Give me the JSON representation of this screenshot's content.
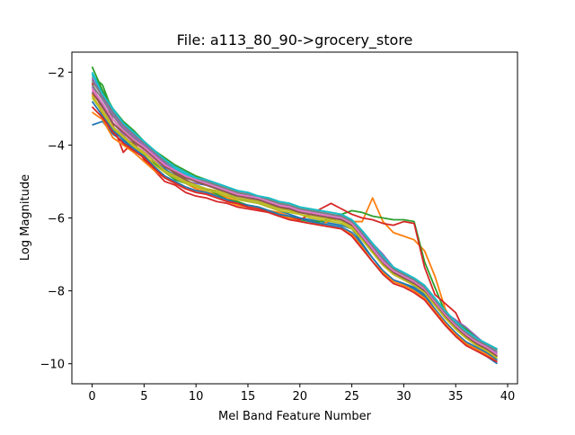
{
  "chart_data": {
    "type": "line",
    "title": "File: a113_80_90->grocery_store",
    "xlabel": "Mel Band Feature Number",
    "ylabel": "Log Magnitude",
    "xlim": [
      -1.95,
      40.95
    ],
    "ylim": [
      -10.55,
      -1.45
    ],
    "xticks": [
      0,
      5,
      10,
      15,
      20,
      25,
      30,
      35,
      40
    ],
    "yticks": [
      -10,
      -8,
      -6,
      -4,
      -2
    ],
    "grid": false,
    "legend": "none",
    "colors": [
      "#1f77b4",
      "#ff7f0e",
      "#2ca02c",
      "#d62728",
      "#9467bd",
      "#8c564b",
      "#e377c2",
      "#7f7f7f",
      "#bcbd22",
      "#17becf"
    ],
    "x": [
      0,
      1,
      2,
      3,
      4,
      5,
      6,
      7,
      8,
      9,
      10,
      11,
      12,
      13,
      14,
      15,
      16,
      17,
      18,
      19,
      20,
      21,
      22,
      23,
      24,
      25,
      26,
      27,
      28,
      29,
      30,
      31,
      32,
      33,
      34,
      35,
      36,
      37,
      38,
      39
    ],
    "series": [
      {
        "values": [
          -3.45,
          -3.35,
          -3.7,
          -3.9,
          -4.1,
          -4.2,
          -4.4,
          -4.65,
          -4.85,
          -5.0,
          -5.05,
          -5.1,
          -5.2,
          -5.3,
          -5.45,
          -5.55,
          -5.6,
          -5.7,
          -5.8,
          -5.9,
          -6.0,
          -6.05,
          -6.1,
          -6.15,
          -6.2,
          -6.3,
          -6.7,
          -7.1,
          -7.45,
          -7.7,
          -7.8,
          -7.9,
          -8.1,
          -8.5,
          -8.9,
          -9.2,
          -9.45,
          -9.6,
          -9.8,
          -10.0
        ]
      },
      {
        "values": [
          -2.6,
          -3.15,
          -3.6,
          -3.8,
          -3.95,
          -4.3,
          -4.5,
          -4.7,
          -4.9,
          -5.05,
          -5.2,
          -5.3,
          -5.35,
          -5.45,
          -5.55,
          -5.7,
          -5.75,
          -5.8,
          -5.85,
          -5.95,
          -6.05,
          -6.1,
          -6.2,
          -6.05,
          -6.0,
          -6.1,
          -6.1,
          -5.45,
          -6.1,
          -6.4,
          -6.5,
          -6.6,
          -6.9,
          -7.6,
          -8.5,
          -9.0,
          -9.2,
          -9.3,
          -9.6,
          -9.7
        ]
      },
      {
        "values": [
          -2.1,
          -2.35,
          -3.1,
          -3.6,
          -3.85,
          -4.0,
          -4.5,
          -4.75,
          -4.95,
          -5.05,
          -5.15,
          -5.2,
          -5.35,
          -5.5,
          -5.55,
          -5.65,
          -5.7,
          -5.8,
          -5.9,
          -6.0,
          -6.05,
          -6.1,
          -6.1,
          -6.0,
          -5.9,
          -5.8,
          -5.85,
          -5.95,
          -6.0,
          -6.05,
          -6.05,
          -6.1,
          -7.2,
          -7.9,
          -8.6,
          -8.9,
          -9.1,
          -9.3,
          -9.5,
          -9.6
        ]
      },
      {
        "values": [
          -2.3,
          -3.1,
          -3.45,
          -4.2,
          -3.9,
          -4.4,
          -4.7,
          -5.0,
          -5.1,
          -5.3,
          -5.4,
          -5.45,
          -5.55,
          -5.6,
          -5.7,
          -5.75,
          -5.8,
          -5.85,
          -5.95,
          -6.0,
          -6.05,
          -5.9,
          -5.75,
          -5.6,
          -5.75,
          -5.9,
          -6.0,
          -6.05,
          -6.15,
          -6.2,
          -6.1,
          -6.15,
          -7.35,
          -8.1,
          -8.35,
          -8.6,
          -9.2,
          -9.35,
          -9.45,
          -9.6
        ]
      },
      {
        "values": [
          -2.4,
          -2.9,
          -3.4,
          -3.7,
          -4.0,
          -4.2,
          -4.45,
          -4.7,
          -4.9,
          -5.0,
          -5.05,
          -5.05,
          -5.15,
          -5.25,
          -5.3,
          -5.4,
          -5.5,
          -5.6,
          -5.65,
          -5.75,
          -5.8,
          -5.85,
          -5.9,
          -5.95,
          -6.0,
          -6.15,
          -6.4,
          -6.7,
          -7.0,
          -7.35,
          -7.6,
          -7.8,
          -8.0,
          -8.3,
          -8.6,
          -8.8,
          -9.0,
          -9.25,
          -9.5,
          -9.8
        ]
      },
      {
        "values": [
          -2.2,
          -2.6,
          -3.3,
          -3.6,
          -3.95,
          -4.1,
          -4.4,
          -4.55,
          -4.8,
          -4.95,
          -5.1,
          -5.2,
          -5.3,
          -5.4,
          -5.45,
          -5.5,
          -5.55,
          -5.65,
          -5.7,
          -5.8,
          -5.85,
          -5.9,
          -5.95,
          -6.0,
          -6.05,
          -6.2,
          -6.5,
          -6.8,
          -7.1,
          -7.4,
          -7.55,
          -7.7,
          -7.9,
          -8.3,
          -8.65,
          -9.0,
          -9.2,
          -9.45,
          -9.65,
          -9.75
        ]
      },
      {
        "values": [
          -2.5,
          -3.0,
          -3.5,
          -3.75,
          -3.9,
          -4.15,
          -4.4,
          -4.6,
          -4.75,
          -4.85,
          -5.0,
          -5.1,
          -5.2,
          -5.3,
          -5.35,
          -5.45,
          -5.5,
          -5.6,
          -5.65,
          -5.75,
          -5.8,
          -5.85,
          -5.9,
          -5.95,
          -6.05,
          -6.25,
          -6.6,
          -6.95,
          -7.3,
          -7.55,
          -7.7,
          -7.85,
          -8.05,
          -8.4,
          -8.75,
          -9.05,
          -9.3,
          -9.5,
          -9.7,
          -9.85
        ]
      },
      {
        "values": [
          -2.35,
          -2.75,
          -3.2,
          -3.55,
          -3.8,
          -4.05,
          -4.3,
          -4.5,
          -4.7,
          -4.8,
          -4.9,
          -5.0,
          -5.1,
          -5.2,
          -5.3,
          -5.4,
          -5.45,
          -5.5,
          -5.6,
          -5.7,
          -5.75,
          -5.8,
          -5.85,
          -5.9,
          -6.0,
          -6.15,
          -6.45,
          -6.8,
          -7.15,
          -7.45,
          -7.6,
          -7.75,
          -7.95,
          -8.3,
          -8.65,
          -8.95,
          -9.15,
          -9.4,
          -9.55,
          -9.7
        ]
      },
      {
        "values": [
          -2.7,
          -3.1,
          -3.55,
          -3.8,
          -4.05,
          -4.25,
          -4.55,
          -4.75,
          -4.9,
          -5.05,
          -5.15,
          -5.25,
          -5.3,
          -5.4,
          -5.5,
          -5.55,
          -5.6,
          -5.7,
          -5.8,
          -5.85,
          -5.9,
          -6.0,
          -6.05,
          -6.1,
          -6.15,
          -6.3,
          -6.6,
          -6.95,
          -7.25,
          -7.5,
          -7.65,
          -7.8,
          -8.0,
          -8.35,
          -8.7,
          -9.0,
          -9.25,
          -9.45,
          -9.65,
          -9.8
        ]
      },
      {
        "values": [
          -2.0,
          -2.55,
          -3.05,
          -3.4,
          -3.7,
          -3.95,
          -4.2,
          -4.45,
          -4.65,
          -4.8,
          -4.95,
          -5.0,
          -5.1,
          -5.2,
          -5.3,
          -5.35,
          -5.45,
          -5.5,
          -5.6,
          -5.65,
          -5.75,
          -5.8,
          -5.85,
          -5.9,
          -5.95,
          -6.1,
          -6.4,
          -6.75,
          -7.1,
          -7.4,
          -7.55,
          -7.7,
          -7.9,
          -8.25,
          -8.6,
          -8.9,
          -9.1,
          -9.35,
          -9.5,
          -9.65
        ]
      },
      {
        "values": [
          -2.8,
          -3.2,
          -3.6,
          -3.85,
          -4.1,
          -4.3,
          -4.6,
          -4.85,
          -5.0,
          -5.15,
          -5.25,
          -5.3,
          -5.4,
          -5.5,
          -5.6,
          -5.65,
          -5.7,
          -5.8,
          -5.9,
          -5.95,
          -6.0,
          -6.1,
          -6.15,
          -6.2,
          -6.25,
          -6.4,
          -6.75,
          -7.1,
          -7.45,
          -7.7,
          -7.8,
          -7.95,
          -8.15,
          -8.5,
          -8.85,
          -9.15,
          -9.4,
          -9.55,
          -9.7,
          -9.9
        ]
      },
      {
        "values": [
          -3.1,
          -3.3,
          -3.8,
          -4.0,
          -4.2,
          -4.45,
          -4.7,
          -4.9,
          -5.05,
          -5.2,
          -5.3,
          -5.35,
          -5.45,
          -5.55,
          -5.65,
          -5.7,
          -5.75,
          -5.85,
          -5.95,
          -6.0,
          -6.1,
          -6.15,
          -6.2,
          -6.25,
          -6.3,
          -6.45,
          -6.8,
          -7.2,
          -7.5,
          -7.75,
          -7.85,
          -8.0,
          -8.2,
          -8.55,
          -8.9,
          -9.2,
          -9.45,
          -9.6,
          -9.75,
          -9.95
        ]
      },
      {
        "values": [
          -1.85,
          -2.5,
          -3.0,
          -3.35,
          -3.6,
          -3.9,
          -4.15,
          -4.35,
          -4.55,
          -4.7,
          -4.85,
          -4.95,
          -5.05,
          -5.15,
          -5.25,
          -5.3,
          -5.4,
          -5.45,
          -5.55,
          -5.6,
          -5.7,
          -5.75,
          -5.8,
          -5.85,
          -5.9,
          -6.05,
          -6.35,
          -6.7,
          -7.05,
          -7.35,
          -7.5,
          -7.65,
          -7.85,
          -8.2,
          -8.55,
          -8.85,
          -9.05,
          -9.3,
          -9.45,
          -9.6
        ]
      },
      {
        "values": [
          -2.95,
          -3.25,
          -3.65,
          -3.95,
          -4.15,
          -4.35,
          -4.65,
          -4.9,
          -5.05,
          -5.2,
          -5.3,
          -5.35,
          -5.45,
          -5.55,
          -5.6,
          -5.7,
          -5.75,
          -5.85,
          -5.95,
          -6.05,
          -6.1,
          -6.15,
          -6.2,
          -6.25,
          -6.3,
          -6.5,
          -6.85,
          -7.2,
          -7.55,
          -7.8,
          -7.9,
          -8.05,
          -8.25,
          -8.6,
          -8.95,
          -9.25,
          -9.5,
          -9.65,
          -9.8,
          -9.95
        ]
      },
      {
        "values": [
          -2.15,
          -2.7,
          -3.15,
          -3.5,
          -3.75,
          -4.0,
          -4.25,
          -4.5,
          -4.7,
          -4.85,
          -5.0,
          -5.05,
          -5.15,
          -5.25,
          -5.35,
          -5.4,
          -5.5,
          -5.55,
          -5.65,
          -5.7,
          -5.8,
          -5.85,
          -5.9,
          -5.95,
          -6.0,
          -6.15,
          -6.45,
          -6.8,
          -7.15,
          -7.45,
          -7.6,
          -7.75,
          -7.95,
          -8.3,
          -8.65,
          -8.95,
          -9.2,
          -9.4,
          -9.55,
          -9.7
        ]
      },
      {
        "values": [
          -2.55,
          -2.95,
          -3.4,
          -3.65,
          -3.9,
          -4.1,
          -4.35,
          -4.6,
          -4.75,
          -4.9,
          -5.0,
          -5.1,
          -5.2,
          -5.3,
          -5.4,
          -5.45,
          -5.5,
          -5.6,
          -5.7,
          -5.75,
          -5.85,
          -5.9,
          -5.95,
          -6.0,
          -6.05,
          -6.2,
          -6.55,
          -6.9,
          -7.25,
          -7.5,
          -7.65,
          -7.8,
          -8.0,
          -8.35,
          -8.7,
          -9.0,
          -9.25,
          -9.45,
          -9.6,
          -9.8
        ]
      },
      {
        "values": [
          -2.45,
          -2.85,
          -3.3,
          -3.6,
          -3.85,
          -4.05,
          -4.3,
          -4.55,
          -4.7,
          -4.85,
          -4.95,
          -5.05,
          -5.15,
          -5.25,
          -5.35,
          -5.4,
          -5.45,
          -5.55,
          -5.65,
          -5.7,
          -5.8,
          -5.85,
          -5.9,
          -5.95,
          -6.0,
          -6.15,
          -6.5,
          -6.85,
          -7.2,
          -7.45,
          -7.6,
          -7.75,
          -7.95,
          -8.3,
          -8.65,
          -8.95,
          -9.2,
          -9.4,
          -9.55,
          -9.75
        ]
      },
      {
        "values": [
          -2.25,
          -2.65,
          -3.1,
          -3.45,
          -3.7,
          -3.95,
          -4.2,
          -4.45,
          -4.6,
          -4.75,
          -4.9,
          -5.0,
          -5.1,
          -5.2,
          -5.3,
          -5.35,
          -5.4,
          -5.5,
          -5.6,
          -5.65,
          -5.75,
          -5.8,
          -5.85,
          -5.9,
          -5.95,
          -6.1,
          -6.4,
          -6.75,
          -7.1,
          -7.4,
          -7.55,
          -7.7,
          -7.9,
          -8.25,
          -8.6,
          -8.9,
          -9.15,
          -9.35,
          -9.5,
          -9.65
        ]
      },
      {
        "values": [
          -2.65,
          -3.05,
          -3.5,
          -3.75,
          -4.0,
          -4.2,
          -4.45,
          -4.7,
          -4.85,
          -5.0,
          -5.1,
          -5.2,
          -5.25,
          -5.35,
          -5.45,
          -5.5,
          -5.55,
          -5.65,
          -5.75,
          -5.8,
          -5.9,
          -5.95,
          -6.0,
          -6.05,
          -6.1,
          -6.25,
          -6.6,
          -6.95,
          -7.3,
          -7.55,
          -7.7,
          -7.85,
          -8.05,
          -8.4,
          -8.75,
          -9.05,
          -9.3,
          -9.5,
          -9.65,
          -9.85
        ]
      },
      {
        "values": [
          -2.05,
          -2.6,
          -3.0,
          -3.4,
          -3.65,
          -3.9,
          -4.15,
          -4.4,
          -4.6,
          -4.75,
          -4.9,
          -4.95,
          -5.05,
          -5.15,
          -5.25,
          -5.3,
          -5.4,
          -5.45,
          -5.55,
          -5.6,
          -5.7,
          -5.75,
          -5.8,
          -5.85,
          -5.9,
          -6.05,
          -6.35,
          -6.7,
          -7.05,
          -7.35,
          -7.5,
          -7.65,
          -7.85,
          -8.2,
          -8.55,
          -8.85,
          -9.1,
          -9.3,
          -9.45,
          -9.6
        ]
      }
    ]
  }
}
